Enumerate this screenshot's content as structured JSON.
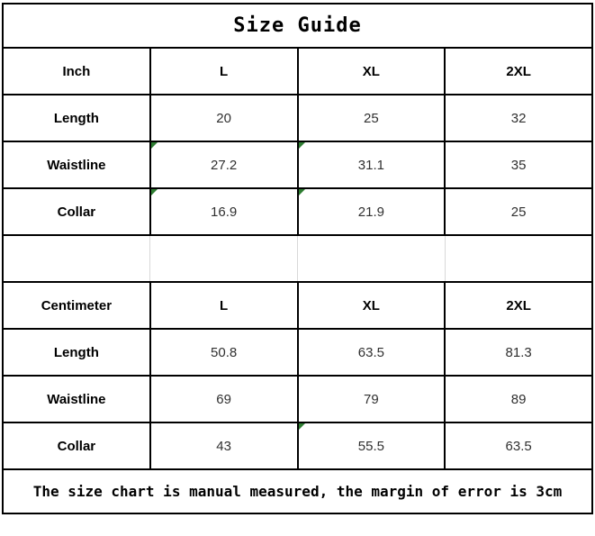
{
  "title": "Size Guide",
  "note": "The size chart is manual measured, the margin of error is 3cm",
  "colors": {
    "border": "#000000",
    "spacer_gridline": "#d9d9d9",
    "flag_green": "#2e7d32",
    "value_text": "#303030",
    "background": "#ffffff"
  },
  "table": {
    "inch": {
      "header": [
        "Inch",
        "L",
        "XL",
        "2XL"
      ],
      "rows": [
        {
          "label": "Length",
          "values": [
            "20",
            "25",
            "32"
          ],
          "flags": [
            false,
            false,
            false
          ]
        },
        {
          "label": "Waistline",
          "values": [
            "27.2",
            "31.1",
            "35"
          ],
          "flags": [
            true,
            true,
            false
          ]
        },
        {
          "label": "Collar",
          "values": [
            "16.9",
            "21.9",
            "25"
          ],
          "flags": [
            true,
            true,
            false
          ]
        }
      ]
    },
    "centimeter": {
      "header": [
        "Centimeter",
        "L",
        "XL",
        "2XL"
      ],
      "rows": [
        {
          "label": "Length",
          "values": [
            "50.8",
            "63.5",
            "81.3"
          ],
          "flags": [
            false,
            false,
            false
          ]
        },
        {
          "label": "Waistline",
          "values": [
            "69",
            "79",
            "89"
          ],
          "flags": [
            false,
            false,
            false
          ]
        },
        {
          "label": "Collar",
          "values": [
            "43",
            "55.5",
            "63.5"
          ],
          "flags": [
            false,
            true,
            false
          ]
        }
      ]
    }
  },
  "chart_data": {
    "type": "table",
    "title": "Size Guide",
    "sections": [
      {
        "unit": "Inch",
        "columns": [
          "L",
          "XL",
          "2XL"
        ],
        "rows": [
          {
            "measure": "Length",
            "values": [
              20,
              25,
              32
            ]
          },
          {
            "measure": "Waistline",
            "values": [
              27.2,
              31.1,
              35
            ]
          },
          {
            "measure": "Collar",
            "values": [
              16.9,
              21.9,
              25
            ]
          }
        ]
      },
      {
        "unit": "Centimeter",
        "columns": [
          "L",
          "XL",
          "2XL"
        ],
        "rows": [
          {
            "measure": "Length",
            "values": [
              50.8,
              63.5,
              81.3
            ]
          },
          {
            "measure": "Waistline",
            "values": [
              69,
              79,
              89
            ]
          },
          {
            "measure": "Collar",
            "values": [
              43,
              55.5,
              63.5
            ]
          }
        ]
      }
    ],
    "footnote": "The size chart is manual measured, the margin of error is 3cm"
  }
}
